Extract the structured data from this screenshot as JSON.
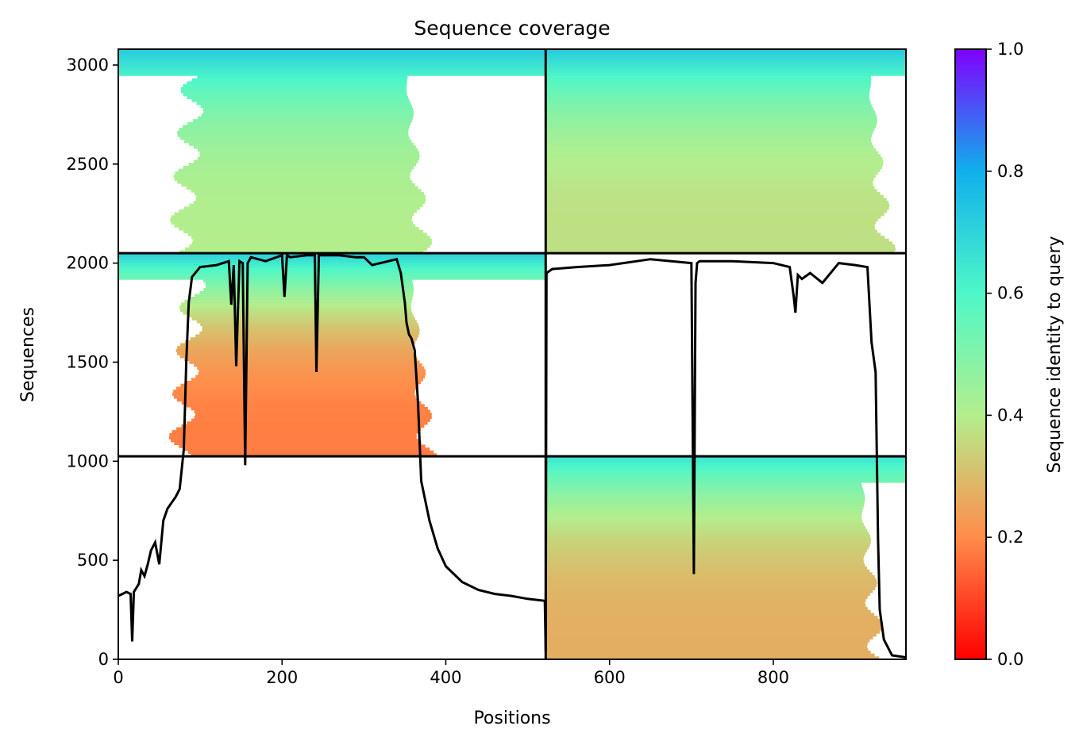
{
  "chart_data": {
    "type": "heatmap",
    "title": "Sequence coverage",
    "xlabel": "Positions",
    "ylabel": "Sequences",
    "xlim": [
      0,
      962
    ],
    "ylim": [
      0,
      3080
    ],
    "xticks": [
      0,
      200,
      400,
      600,
      800
    ],
    "yticks": [
      0,
      500,
      1000,
      1500,
      2000,
      2500,
      3000
    ],
    "colorbar": {
      "label": "Sequence identity to query",
      "range": [
        0.0,
        1.0
      ],
      "ticks": [
        "0.0",
        "0.2",
        "0.4",
        "0.6",
        "0.8",
        "1.0"
      ],
      "colormap": [
        "#ff0000",
        "#ff8c4a",
        "#b3ee8d",
        "#4ef7c8",
        "#0fb0ec",
        "#8000ff"
      ]
    },
    "divider_x": 522,
    "divider_y": [
      1025,
      2050
    ],
    "blocks": [
      {
        "x_range": [
          0,
          522
        ],
        "seq_range": [
          2050,
          3080
        ],
        "identity_top": 0.72,
        "identity_bottom": 0.4,
        "coverage": [
          80,
          360
        ]
      },
      {
        "x_range": [
          522,
          962
        ],
        "seq_range": [
          2050,
          3080
        ],
        "identity_top": 0.72,
        "identity_bottom": 0.37,
        "coverage": [
          522,
          925
        ]
      },
      {
        "x_range": [
          0,
          522
        ],
        "seq_range": [
          1025,
          2050
        ],
        "identity_top": 0.7,
        "identity_bottom": 0.18,
        "coverage": [
          80,
          365
        ]
      },
      {
        "x_range": [
          522,
          962
        ],
        "seq_range": [
          0,
          1025
        ],
        "identity_top": 0.65,
        "identity_bottom": 0.27,
        "coverage": [
          522,
          915
        ]
      }
    ],
    "coverage_line": {
      "x": [
        0,
        10,
        15,
        17,
        19,
        25,
        28,
        32,
        36,
        40,
        45,
        50,
        55,
        60,
        65,
        70,
        75,
        80,
        83,
        86,
        90,
        100,
        120,
        135,
        138,
        141,
        144,
        148,
        152,
        155,
        158,
        162,
        180,
        200,
        203,
        206,
        210,
        230,
        240,
        242,
        245,
        250,
        270,
        290,
        300,
        310,
        340,
        345,
        350,
        352,
        355,
        358,
        362,
        366,
        370,
        380,
        390,
        400,
        420,
        440,
        460,
        480,
        500,
        521,
        522,
        523,
        530,
        560,
        600,
        650,
        700,
        703,
        705,
        707,
        710,
        750,
        800,
        820,
        825,
        827,
        830,
        835,
        845,
        860,
        880,
        900,
        915,
        920,
        925,
        928,
        930,
        935,
        945,
        962
      ],
      "y": [
        320,
        340,
        330,
        90,
        340,
        380,
        450,
        420,
        480,
        550,
        590,
        480,
        700,
        760,
        790,
        820,
        860,
        1060,
        1500,
        1800,
        1930,
        1980,
        1990,
        2010,
        1790,
        1990,
        1480,
        2010,
        2000,
        980,
        2000,
        2030,
        2010,
        2040,
        1830,
        2040,
        2030,
        2040,
        2040,
        1450,
        2040,
        2040,
        2040,
        2030,
        2030,
        1990,
        2020,
        1950,
        1800,
        1700,
        1640,
        1620,
        1560,
        1300,
        900,
        700,
        560,
        470,
        390,
        350,
        330,
        320,
        305,
        295,
        40,
        1950,
        1970,
        1980,
        1990,
        2020,
        2000,
        430,
        1900,
        2000,
        2010,
        2010,
        2000,
        1980,
        1830,
        1750,
        1940,
        1920,
        1950,
        1900,
        2000,
        1990,
        1980,
        1600,
        1450,
        600,
        250,
        100,
        20,
        10
      ]
    }
  }
}
